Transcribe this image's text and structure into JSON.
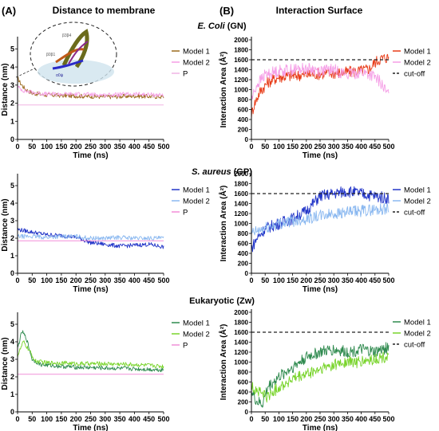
{
  "panels": {
    "a_label": "(A)",
    "a_title": "Distance to membrane",
    "b_label": "(B)",
    "b_title": "Interaction Surface"
  },
  "rows": [
    {
      "organism": "E. Coli",
      "type": "(GN)"
    },
    {
      "organism": "S. aureus",
      "type": "(GP)"
    },
    {
      "organism": "Eukaryotic",
      "type": "(Zw)"
    }
  ],
  "inset": {
    "labels": [
      "β3β4",
      "β0β1",
      "α0ψ"
    ]
  },
  "colors": {
    "ecoli_model1": "#9b6a1c",
    "ecoli_model2": "#f59ee6",
    "ecoli_p": "#f0b4e4",
    "ecoli_area1": "#e83c18",
    "saureus_model1": "#2235c8",
    "saureus_model2": "#8ab8f0",
    "saureus_p": "#f38dd8",
    "euk_model1": "#2e8a4e",
    "euk_model2": "#78d42a",
    "euk_p": "#f090d8",
    "cutoff": "#222222"
  },
  "chart_data": [
    {
      "id": "ecoli-distance",
      "type": "line",
      "xlabel": "Time (ns)",
      "ylabel": "Distance (nm)",
      "xlim": [
        0,
        500
      ],
      "ylim": [
        0,
        5.5
      ],
      "xticks": [
        0,
        50,
        100,
        150,
        200,
        250,
        300,
        350,
        400,
        450,
        500
      ],
      "yticks": [
        0,
        1,
        2,
        3,
        4,
        5
      ],
      "series": [
        {
          "name": "Model 1",
          "color": "#9b6a1c",
          "values": [
            [
              0,
              3.4
            ],
            [
              10,
              3.1
            ],
            [
              25,
              2.8
            ],
            [
              50,
              2.55
            ],
            [
              100,
              2.45
            ],
            [
              200,
              2.4
            ],
            [
              300,
              2.35
            ],
            [
              400,
              2.4
            ],
            [
              500,
              2.35
            ]
          ]
        },
        {
          "name": "Model 2",
          "color": "#f59ee6",
          "values": [
            [
              0,
              2.9
            ],
            [
              20,
              2.7
            ],
            [
              50,
              2.6
            ],
            [
              100,
              2.5
            ],
            [
              200,
              2.5
            ],
            [
              300,
              2.45
            ],
            [
              400,
              2.5
            ],
            [
              500,
              2.45
            ]
          ]
        },
        {
          "name": "P",
          "color": "#f0b4e4",
          "values": [
            [
              0,
              1.9
            ],
            [
              500,
              1.9
            ]
          ]
        }
      ]
    },
    {
      "id": "ecoli-area",
      "type": "line",
      "xlabel": "Time (ns)",
      "ylabel": "Interaction Area (Å²)",
      "xlim": [
        0,
        500
      ],
      "ylim": [
        0,
        2000
      ],
      "xticks": [
        0,
        50,
        100,
        150,
        200,
        250,
        300,
        350,
        400,
        450,
        500
      ],
      "yticks": [
        0,
        200,
        400,
        600,
        800,
        1000,
        1200,
        1400,
        1600,
        1800,
        2000
      ],
      "series": [
        {
          "name": "Model 1",
          "color": "#e83c18",
          "values": [
            [
              0,
              500
            ],
            [
              10,
              700
            ],
            [
              30,
              950
            ],
            [
              60,
              1150
            ],
            [
              100,
              1250
            ],
            [
              150,
              1280
            ],
            [
              200,
              1300
            ],
            [
              250,
              1320
            ],
            [
              300,
              1330
            ],
            [
              350,
              1350
            ],
            [
              400,
              1380
            ],
            [
              430,
              1420
            ],
            [
              450,
              1550
            ],
            [
              470,
              1620
            ],
            [
              500,
              1650
            ]
          ]
        },
        {
          "name": "Model 2",
          "color": "#f59ee6",
          "values": [
            [
              0,
              800
            ],
            [
              20,
              1100
            ],
            [
              50,
              1300
            ],
            [
              100,
              1380
            ],
            [
              150,
              1400
            ],
            [
              200,
              1420
            ],
            [
              250,
              1380
            ],
            [
              300,
              1400
            ],
            [
              350,
              1300
            ],
            [
              400,
              1350
            ],
            [
              440,
              1280
            ],
            [
              470,
              1150
            ],
            [
              490,
              950
            ],
            [
              500,
              900
            ]
          ]
        }
      ],
      "cutoff": 1600,
      "cutoff_label": "cut-off"
    },
    {
      "id": "saureus-distance",
      "type": "line",
      "xlabel": "Time (ns)",
      "ylabel": "Distance (nm)",
      "xlim": [
        0,
        500
      ],
      "ylim": [
        0,
        5.5
      ],
      "xticks": [
        0,
        50,
        100,
        150,
        200,
        250,
        300,
        350,
        400,
        450,
        500
      ],
      "yticks": [
        0,
        1,
        2,
        3,
        4,
        5
      ],
      "series": [
        {
          "name": "Model 1",
          "color": "#2235c8",
          "values": [
            [
              0,
              2.5
            ],
            [
              50,
              2.35
            ],
            [
              100,
              2.2
            ],
            [
              150,
              2.15
            ],
            [
              200,
              2.05
            ],
            [
              250,
              1.75
            ],
            [
              300,
              1.65
            ],
            [
              350,
              1.55
            ],
            [
              400,
              1.6
            ],
            [
              450,
              1.65
            ],
            [
              500,
              1.5
            ]
          ]
        },
        {
          "name": "Model 2",
          "color": "#8ab8f0",
          "values": [
            [
              0,
              2.1
            ],
            [
              50,
              2.1
            ],
            [
              100,
              2.05
            ],
            [
              150,
              2.1
            ],
            [
              200,
              2.1
            ],
            [
              250,
              2.0
            ],
            [
              300,
              2.0
            ],
            [
              350,
              2.05
            ],
            [
              400,
              2.0
            ],
            [
              450,
              2.0
            ],
            [
              500,
              2.0
            ]
          ]
        },
        {
          "name": "P",
          "color": "#f38dd8",
          "values": [
            [
              0,
              1.85
            ],
            [
              500,
              1.85
            ]
          ]
        }
      ]
    },
    {
      "id": "saureus-area",
      "type": "line",
      "xlabel": "Time (ns)",
      "ylabel": "Interaction Area (Å²)",
      "xlim": [
        0,
        500
      ],
      "ylim": [
        0,
        2000
      ],
      "xticks": [
        0,
        50,
        100,
        150,
        200,
        250,
        300,
        350,
        400,
        450,
        500
      ],
      "yticks": [
        0,
        200,
        400,
        600,
        800,
        1000,
        1200,
        1400,
        1600,
        1800,
        2000
      ],
      "series": [
        {
          "name": "Model 1",
          "color": "#2235c8",
          "values": [
            [
              0,
              500
            ],
            [
              20,
              700
            ],
            [
              50,
              900
            ],
            [
              100,
              1000
            ],
            [
              150,
              1100
            ],
            [
              200,
              1250
            ],
            [
              250,
              1550
            ],
            [
              300,
              1600
            ],
            [
              350,
              1650
            ],
            [
              400,
              1600
            ],
            [
              450,
              1550
            ],
            [
              500,
              1500
            ]
          ]
        },
        {
          "name": "Model 2",
          "color": "#8ab8f0",
          "values": [
            [
              0,
              800
            ],
            [
              50,
              900
            ],
            [
              100,
              1000
            ],
            [
              150,
              1050
            ],
            [
              200,
              1100
            ],
            [
              250,
              1150
            ],
            [
              300,
              1200
            ],
            [
              350,
              1220
            ],
            [
              400,
              1250
            ],
            [
              450,
              1280
            ],
            [
              500,
              1300
            ]
          ]
        }
      ],
      "cutoff": 1600,
      "cutoff_label": "cut-off"
    },
    {
      "id": "euk-distance",
      "type": "line",
      "xlabel": "Time (ns)",
      "ylabel": "Distance (nm)",
      "xlim": [
        0,
        500
      ],
      "ylim": [
        0,
        5.5
      ],
      "xticks": [
        0,
        50,
        100,
        150,
        200,
        250,
        300,
        350,
        400,
        450,
        500
      ],
      "yticks": [
        0,
        1,
        2,
        3,
        4,
        5
      ],
      "series": [
        {
          "name": "Model 1",
          "color": "#2e8a4e",
          "values": [
            [
              0,
              3.6
            ],
            [
              15,
              4.6
            ],
            [
              30,
              4.2
            ],
            [
              50,
              3.0
            ],
            [
              80,
              2.7
            ],
            [
              150,
              2.6
            ],
            [
              200,
              2.55
            ],
            [
              300,
              2.5
            ],
            [
              400,
              2.45
            ],
            [
              500,
              2.4
            ]
          ]
        },
        {
          "name": "Model 2",
          "color": "#78d42a",
          "values": [
            [
              0,
              3.2
            ],
            [
              20,
              4.0
            ],
            [
              40,
              3.5
            ],
            [
              60,
              2.9
            ],
            [
              100,
              2.8
            ],
            [
              150,
              2.8
            ],
            [
              200,
              2.75
            ],
            [
              300,
              2.75
            ],
            [
              400,
              2.7
            ],
            [
              500,
              2.6
            ]
          ]
        },
        {
          "name": "P",
          "color": "#f090d8",
          "values": [
            [
              0,
              2.15
            ],
            [
              500,
              2.15
            ]
          ]
        }
      ]
    },
    {
      "id": "euk-area",
      "type": "line",
      "xlabel": "Time (ns)",
      "ylabel": "Interaction Area (Å²)",
      "xlim": [
        0,
        500
      ],
      "ylim": [
        0,
        2000
      ],
      "xticks": [
        0,
        50,
        100,
        150,
        200,
        250,
        300,
        350,
        400,
        450,
        500
      ],
      "yticks": [
        0,
        200,
        400,
        600,
        800,
        1000,
        1200,
        1400,
        1600,
        1800,
        2000
      ],
      "series": [
        {
          "name": "Model 1",
          "color": "#2e8a4e",
          "values": [
            [
              0,
              400
            ],
            [
              20,
              200
            ],
            [
              40,
              150
            ],
            [
              60,
              500
            ],
            [
              100,
              700
            ],
            [
              150,
              900
            ],
            [
              200,
              1100
            ],
            [
              250,
              1200
            ],
            [
              300,
              1250
            ],
            [
              350,
              1200
            ],
            [
              400,
              1250
            ],
            [
              450,
              1200
            ],
            [
              500,
              1300
            ]
          ]
        },
        {
          "name": "Model 2",
          "color": "#78d42a",
          "values": [
            [
              0,
              500
            ],
            [
              30,
              400
            ],
            [
              60,
              300
            ],
            [
              100,
              500
            ],
            [
              150,
              650
            ],
            [
              200,
              750
            ],
            [
              250,
              850
            ],
            [
              300,
              950
            ],
            [
              350,
              1000
            ],
            [
              400,
              1000
            ],
            [
              450,
              1050
            ],
            [
              500,
              1100
            ]
          ]
        }
      ],
      "cutoff": 1600,
      "cutoff_label": "cut-off"
    }
  ]
}
